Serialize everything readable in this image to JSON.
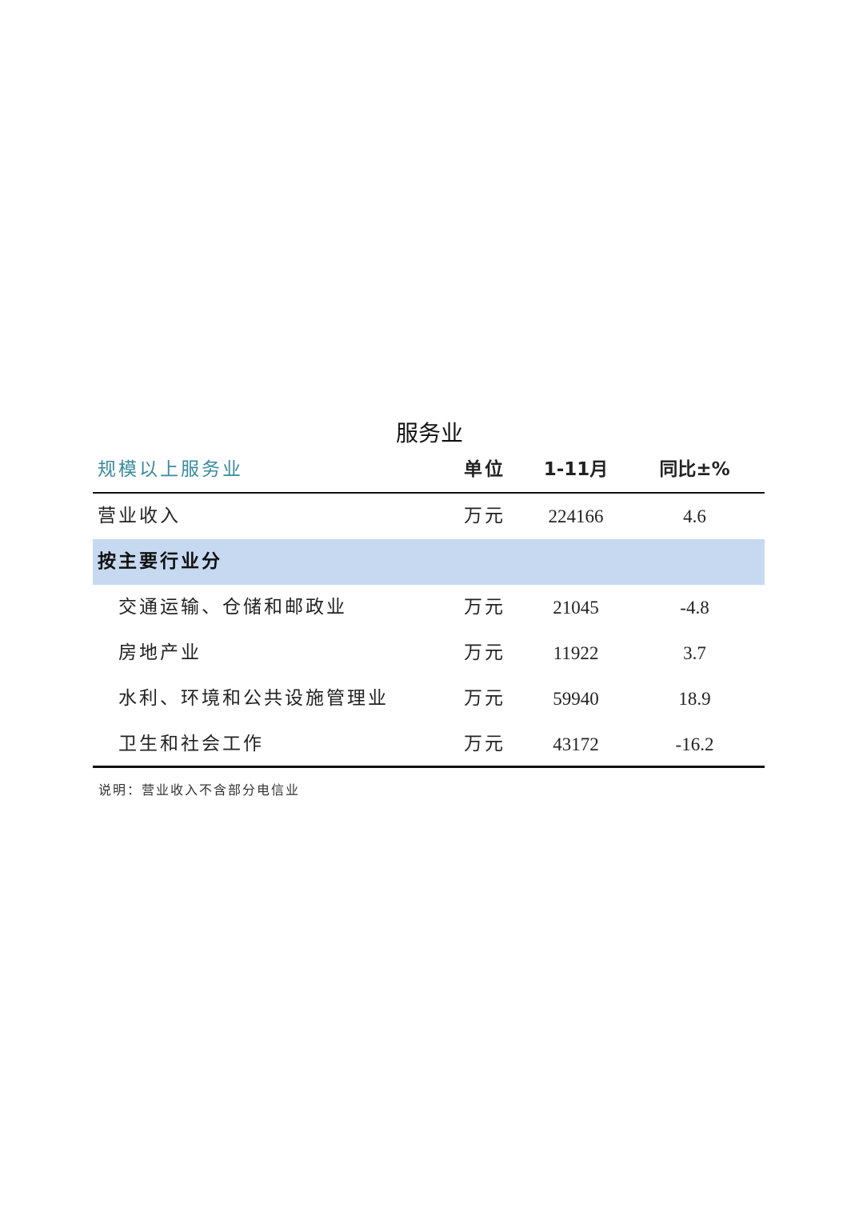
{
  "title": "服务业",
  "table": {
    "headers": [
      "规模以上服务业",
      "单位",
      "1-11月",
      "同比±%"
    ],
    "total": {
      "label": "营业收入",
      "unit": "万元",
      "value": "224166",
      "yoy": "4.6"
    },
    "section_label": "按主要行业分",
    "rows": [
      {
        "label": "交通运输、仓储和邮政业",
        "unit": "万元",
        "value": "21045",
        "yoy": "-4.8"
      },
      {
        "label": "房地产业",
        "unit": "万元",
        "value": "11922",
        "yoy": "3.7"
      },
      {
        "label": "水利、环境和公共设施管理业",
        "unit": "万元",
        "value": "59940",
        "yoy": "18.9"
      },
      {
        "label": "卫生和社会工作",
        "unit": "万元",
        "value": "43172",
        "yoy": "-16.2"
      }
    ]
  },
  "note": "说明：营业收入不含部分电信业",
  "colors": {
    "header_text": "#3a8a9e",
    "section_bg": "#c6d9f0"
  }
}
